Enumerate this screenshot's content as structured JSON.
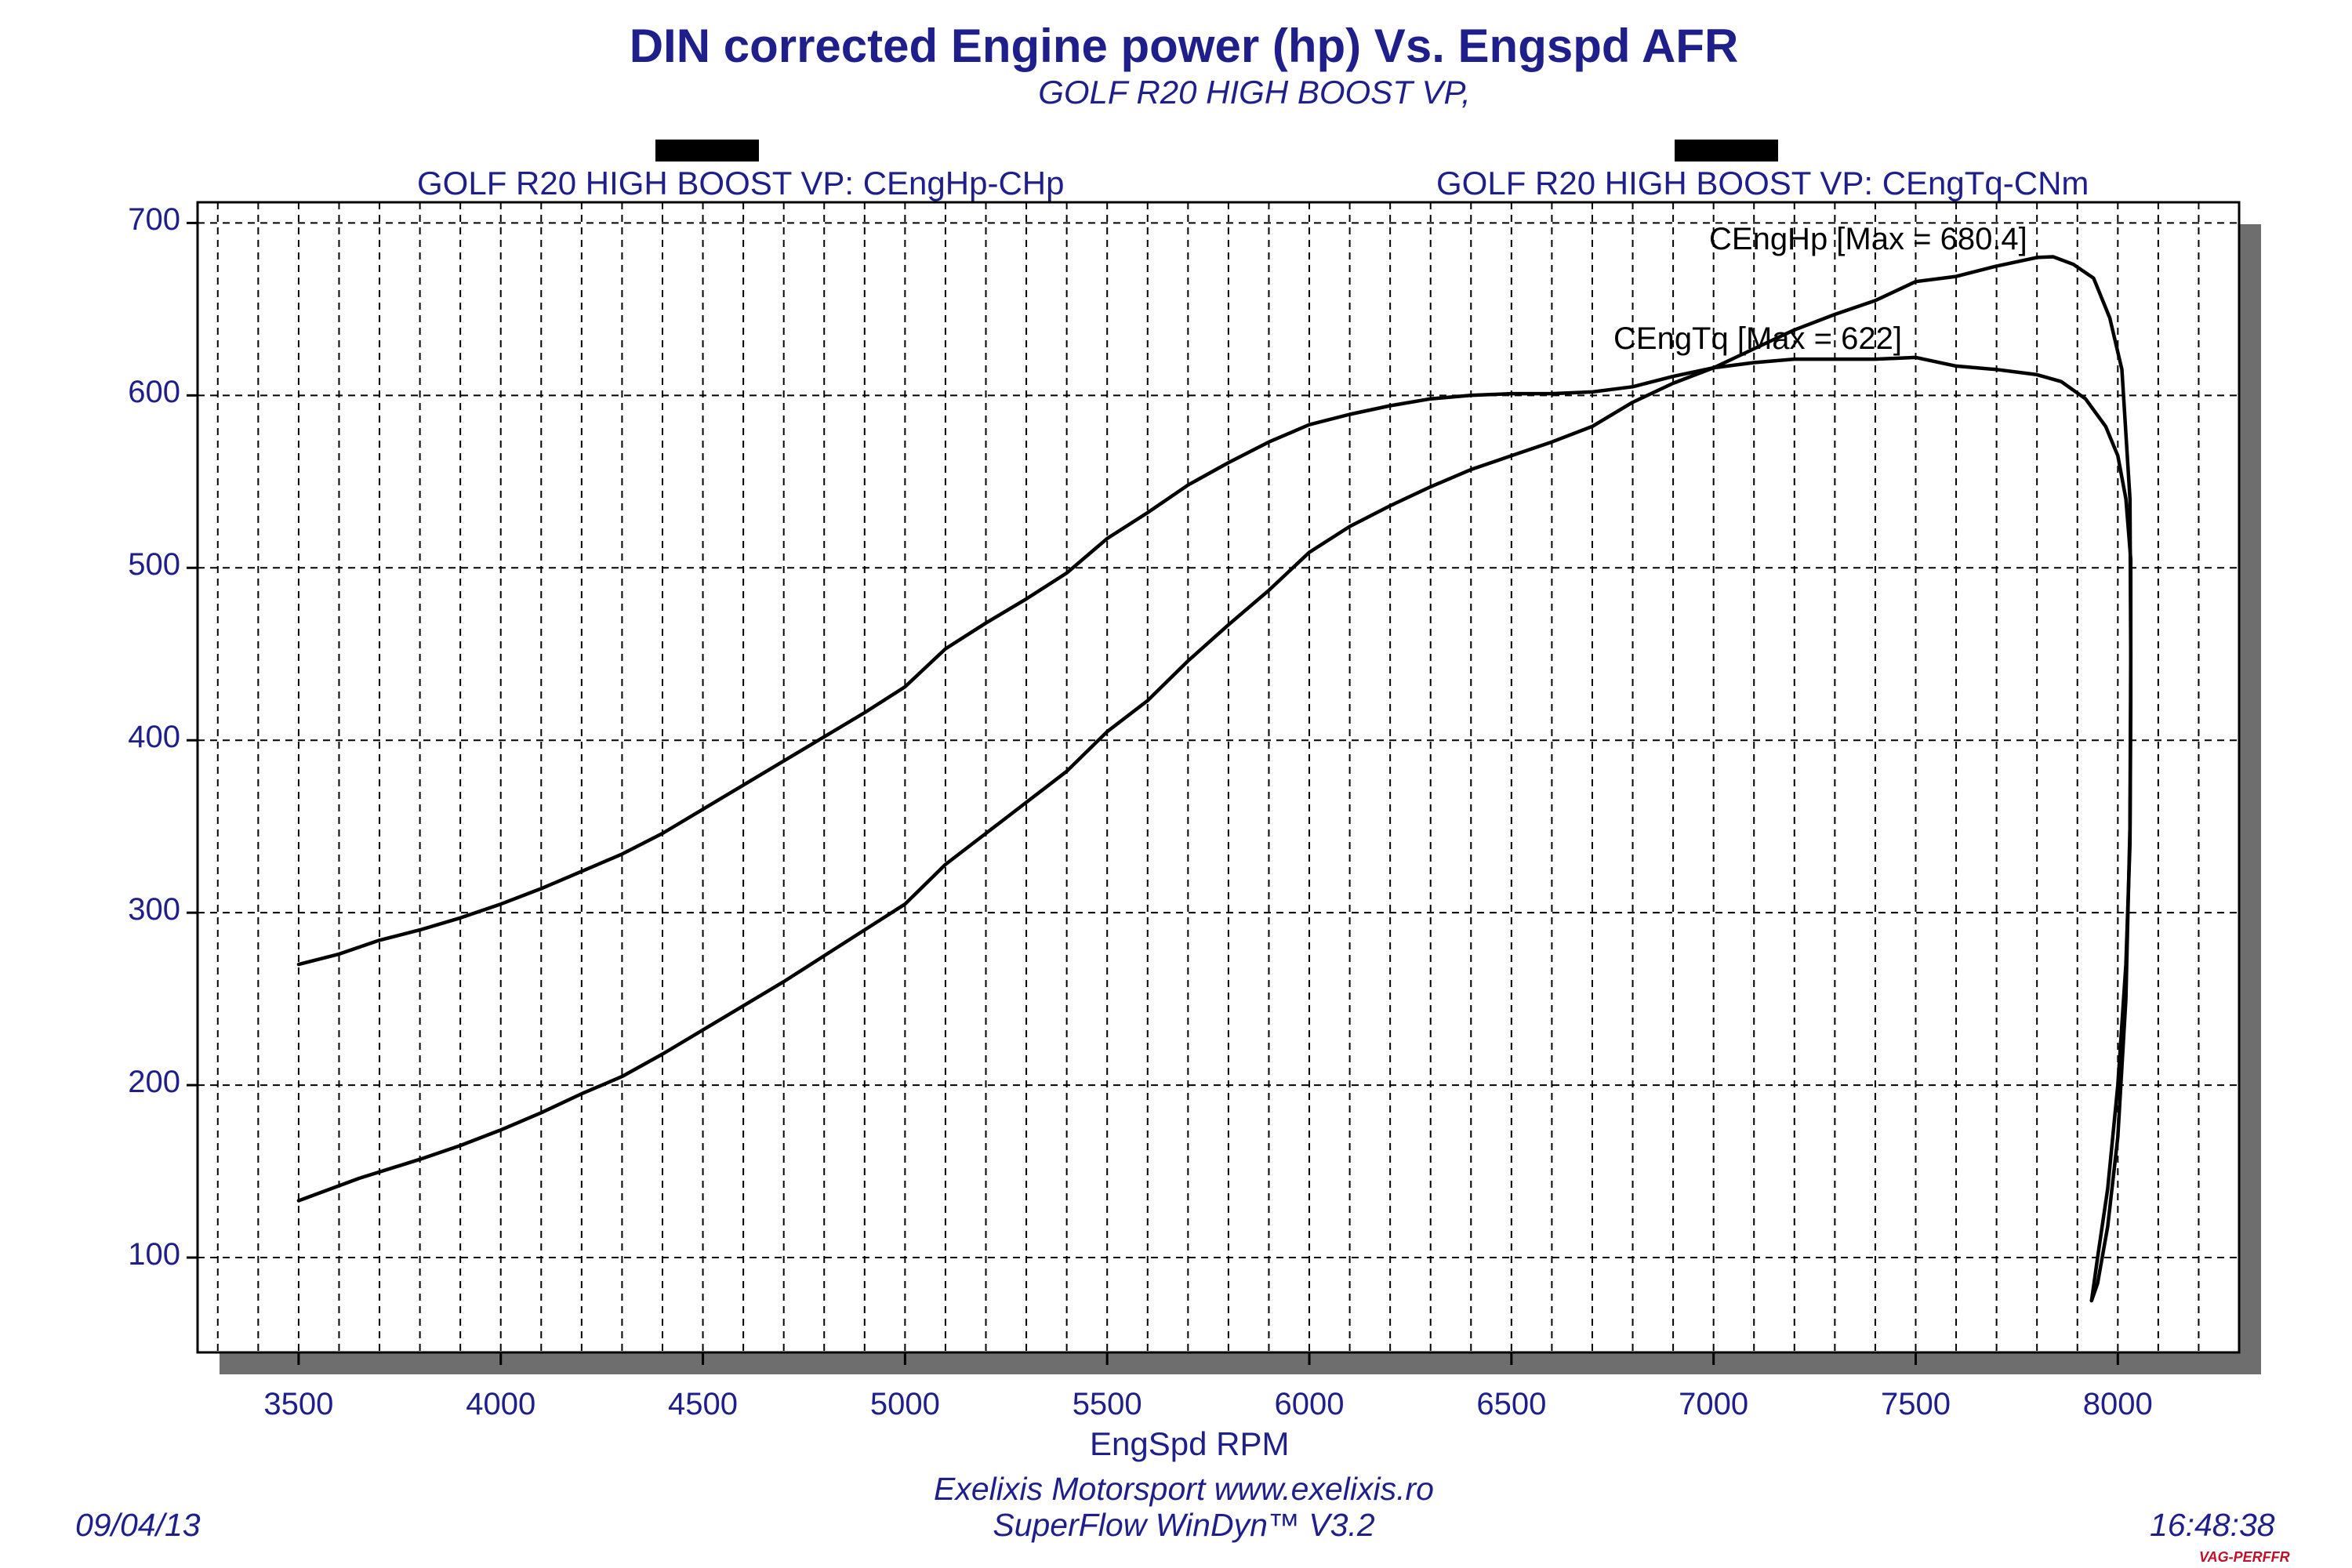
{
  "title": "DIN corrected Engine power (hp) Vs. Engspd AFR",
  "subtitle": "GOLF R20 HIGH BOOST VP,",
  "footer": {
    "date": "09/04/13",
    "time": "16:48:38",
    "line1": "Exelixis Motorsport www.exelixis.ro",
    "line2": "SuperFlow WinDyn™ V3.2",
    "brand": "VAG-PERFFR"
  },
  "chart_data": {
    "type": "line",
    "title": "DIN corrected Engine power (hp) Vs. Engspd AFR",
    "subtitle": "GOLF R20 HIGH BOOST VP,",
    "xlabel": "EngSpd RPM",
    "ylabel": "",
    "xlim": [
      3250,
      8300
    ],
    "ylim": [
      45,
      712
    ],
    "x_ticks": [
      "3500",
      "4000",
      "4500",
      "5000",
      "5500",
      "6000",
      "6500",
      "7000",
      "7500",
      "8000"
    ],
    "y_ticks": [
      "700",
      "600",
      "500",
      "400",
      "300",
      "200",
      "100"
    ],
    "grid": true,
    "legend": [
      "GOLF R20 HIGH BOOST VP: CEngHp-CHp",
      "GOLF R20 HIGH BOOST VP: CEngTq-CNm"
    ],
    "series": [
      {
        "name": "GOLF R20 HIGH BOOST VP: CEngHp-CHp",
        "annotation": "CEngHp [Max = 680.4]",
        "max": 680.4,
        "points": [
          [
            3500,
            133
          ],
          [
            3650,
            146
          ],
          [
            3800,
            157
          ],
          [
            3900,
            165
          ],
          [
            4000,
            174
          ],
          [
            4100,
            184
          ],
          [
            4200,
            195
          ],
          [
            4300,
            205
          ],
          [
            4400,
            218
          ],
          [
            4500,
            232
          ],
          [
            4600,
            246
          ],
          [
            4700,
            260
          ],
          [
            4800,
            275
          ],
          [
            4900,
            290
          ],
          [
            5000,
            305
          ],
          [
            5100,
            328
          ],
          [
            5200,
            346
          ],
          [
            5300,
            364
          ],
          [
            5400,
            382
          ],
          [
            5500,
            405
          ],
          [
            5600,
            423
          ],
          [
            5700,
            446
          ],
          [
            5800,
            467
          ],
          [
            5900,
            487
          ],
          [
            6000,
            509
          ],
          [
            6100,
            524
          ],
          [
            6200,
            536
          ],
          [
            6300,
            547
          ],
          [
            6400,
            557
          ],
          [
            6500,
            565
          ],
          [
            6600,
            573
          ],
          [
            6700,
            582
          ],
          [
            6800,
            596
          ],
          [
            6900,
            607
          ],
          [
            7000,
            616
          ],
          [
            7100,
            627
          ],
          [
            7200,
            638
          ],
          [
            7300,
            647
          ],
          [
            7400,
            655
          ],
          [
            7500,
            666
          ],
          [
            7600,
            669
          ],
          [
            7700,
            675
          ],
          [
            7800,
            680
          ],
          [
            7840,
            680.4
          ],
          [
            7890,
            676
          ],
          [
            7940,
            668
          ],
          [
            7980,
            645
          ],
          [
            8010,
            615
          ],
          [
            8030,
            540
          ],
          [
            8032,
            450
          ],
          [
            8030,
            350
          ],
          [
            8020,
            250
          ],
          [
            8000,
            170
          ],
          [
            7975,
            118
          ],
          [
            7950,
            85
          ],
          [
            7935,
            75
          ]
        ]
      },
      {
        "name": "GOLF R20 HIGH BOOST VP: CEngTq-CNm",
        "annotation": "CEngTq [Max = 622]",
        "max": 622,
        "points": [
          [
            3500,
            270
          ],
          [
            3600,
            276
          ],
          [
            3700,
            284
          ],
          [
            3800,
            290
          ],
          [
            3900,
            297
          ],
          [
            4000,
            305
          ],
          [
            4100,
            314
          ],
          [
            4200,
            324
          ],
          [
            4300,
            334
          ],
          [
            4400,
            346
          ],
          [
            4500,
            360
          ],
          [
            4600,
            374
          ],
          [
            4700,
            388
          ],
          [
            4800,
            402
          ],
          [
            4900,
            416
          ],
          [
            5000,
            431
          ],
          [
            5100,
            453
          ],
          [
            5200,
            468
          ],
          [
            5300,
            482
          ],
          [
            5400,
            497
          ],
          [
            5500,
            517
          ],
          [
            5600,
            532
          ],
          [
            5700,
            548
          ],
          [
            5800,
            561
          ],
          [
            5900,
            573
          ],
          [
            6000,
            583
          ],
          [
            6100,
            589
          ],
          [
            6200,
            594
          ],
          [
            6300,
            598
          ],
          [
            6400,
            600
          ],
          [
            6500,
            601
          ],
          [
            6600,
            601
          ],
          [
            6700,
            602
          ],
          [
            6800,
            605
          ],
          [
            6900,
            611
          ],
          [
            7000,
            616
          ],
          [
            7100,
            619
          ],
          [
            7200,
            621
          ],
          [
            7300,
            621
          ],
          [
            7400,
            621
          ],
          [
            7500,
            622
          ],
          [
            7600,
            617
          ],
          [
            7700,
            615
          ],
          [
            7800,
            612
          ],
          [
            7860,
            608
          ],
          [
            7920,
            598
          ],
          [
            7970,
            582
          ],
          [
            8000,
            565
          ],
          [
            8020,
            540
          ],
          [
            8032,
            505
          ],
          [
            8032,
            420
          ],
          [
            8030,
            340
          ],
          [
            8020,
            270
          ],
          [
            8000,
            200
          ],
          [
            7975,
            140
          ],
          [
            7950,
            100
          ],
          [
            7935,
            75
          ]
        ]
      }
    ]
  }
}
